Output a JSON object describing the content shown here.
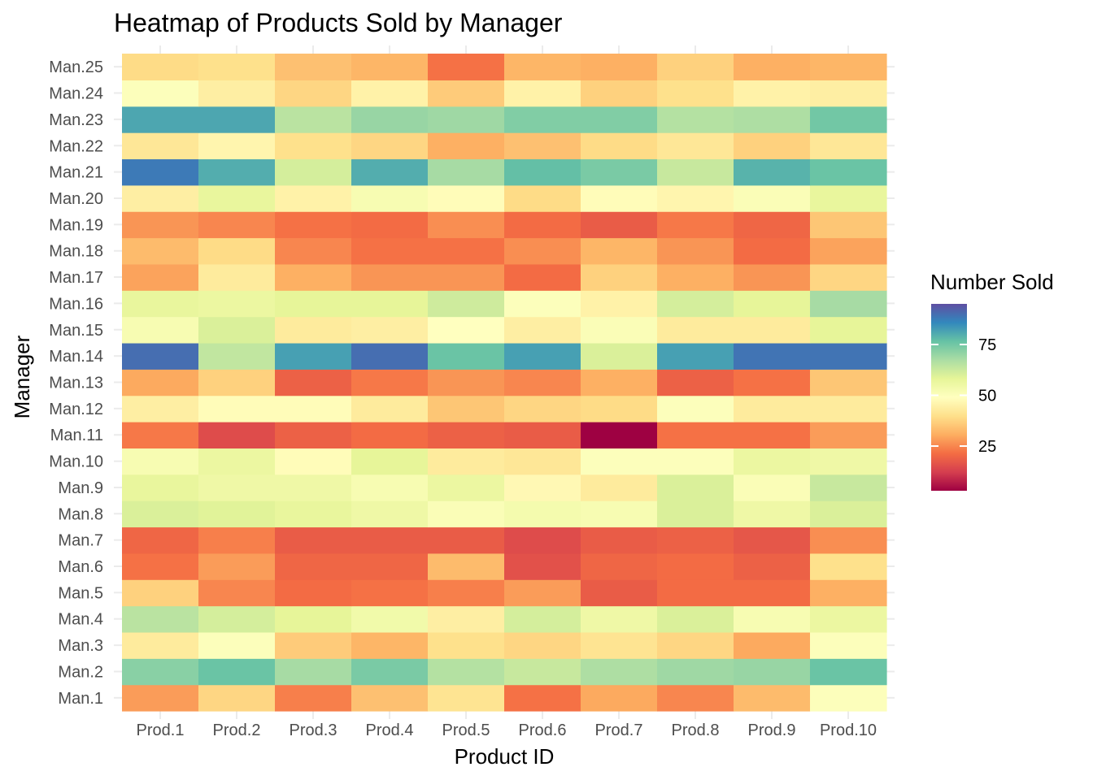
{
  "chart_data": {
    "type": "heatmap",
    "title": "Heatmap of Products Sold by Manager",
    "xlabel": "Product ID",
    "ylabel": "Manager",
    "x": [
      "Prod.1",
      "Prod.2",
      "Prod.3",
      "Prod.4",
      "Prod.5",
      "Prod.6",
      "Prod.7",
      "Prod.8",
      "Prod.9",
      "Prod.10"
    ],
    "y": [
      "Man.1",
      "Man.2",
      "Man.3",
      "Man.4",
      "Man.5",
      "Man.6",
      "Man.7",
      "Man.8",
      "Man.9",
      "Man.10",
      "Man.11",
      "Man.12",
      "Man.13",
      "Man.14",
      "Man.15",
      "Man.16",
      "Man.17",
      "Man.18",
      "Man.19",
      "Man.20",
      "Man.21",
      "Man.22",
      "Man.23",
      "Man.24",
      "Man.25"
    ],
    "values": [
      [
        28,
        38,
        24,
        34,
        41,
        22,
        30,
        25,
        33,
        50
      ],
      [
        72,
        76,
        68,
        74,
        66,
        63,
        67,
        69,
        70,
        76
      ],
      [
        43,
        50,
        36,
        32,
        40,
        38,
        41,
        38,
        30,
        50
      ],
      [
        65,
        61,
        58,
        54,
        44,
        61,
        55,
        60,
        52,
        56
      ],
      [
        37,
        25,
        21,
        22,
        24,
        28,
        18,
        21,
        21,
        31
      ],
      [
        22,
        28,
        20,
        20,
        33,
        16,
        20,
        21,
        19,
        40
      ],
      [
        20,
        24,
        18,
        18,
        18,
        15,
        18,
        19,
        17,
        26
      ],
      [
        60,
        59,
        57,
        55,
        51,
        53,
        52,
        60,
        55,
        60
      ],
      [
        57,
        55,
        55,
        52,
        56,
        47,
        43,
        60,
        51,
        63
      ],
      [
        52,
        56,
        48,
        58,
        43,
        42,
        50,
        50,
        56,
        55
      ],
      [
        23,
        15,
        19,
        21,
        19,
        18,
        3,
        22,
        22,
        28
      ],
      [
        44,
        48,
        48,
        43,
        35,
        38,
        39,
        50,
        43,
        43
      ],
      [
        30,
        37,
        19,
        23,
        27,
        25,
        31,
        19,
        22,
        35
      ],
      [
        90,
        64,
        82,
        90,
        76,
        82,
        60,
        82,
        89,
        89
      ],
      [
        52,
        60,
        43,
        44,
        49,
        44,
        51,
        43,
        43,
        58
      ],
      [
        57,
        56,
        58,
        58,
        62,
        50,
        45,
        61,
        58,
        68
      ],
      [
        29,
        43,
        31,
        27,
        27,
        21,
        37,
        31,
        27,
        38
      ],
      [
        33,
        39,
        25,
        22,
        22,
        26,
        32,
        27,
        21,
        29
      ],
      [
        27,
        25,
        22,
        21,
        26,
        21,
        18,
        23,
        20,
        35
      ],
      [
        44,
        57,
        45,
        52,
        48,
        39,
        48,
        46,
        51,
        57
      ],
      [
        88,
        80,
        61,
        80,
        68,
        77,
        74,
        63,
        79,
        76
      ],
      [
        42,
        46,
        40,
        38,
        31,
        34,
        39,
        42,
        37,
        42
      ],
      [
        81,
        81,
        65,
        70,
        69,
        73,
        73,
        66,
        67,
        75
      ],
      [
        50,
        44,
        38,
        45,
        36,
        45,
        37,
        40,
        45,
        44
      ],
      [
        39,
        40,
        34,
        32,
        22,
        32,
        31,
        37,
        31,
        32
      ]
    ],
    "color_scale": {
      "name": "Spectral",
      "min": 3,
      "max": 95,
      "stops": [
        "#9E0142",
        "#D53E4F",
        "#F46D43",
        "#FDAE61",
        "#FEE08B",
        "#FFFFBF",
        "#E6F598",
        "#ABDDA4",
        "#66C2A5",
        "#3288BD",
        "#5E4FA2"
      ]
    },
    "legend": {
      "title": "Number Sold",
      "placement": "right",
      "ticks": [
        25,
        50,
        75
      ]
    }
  }
}
